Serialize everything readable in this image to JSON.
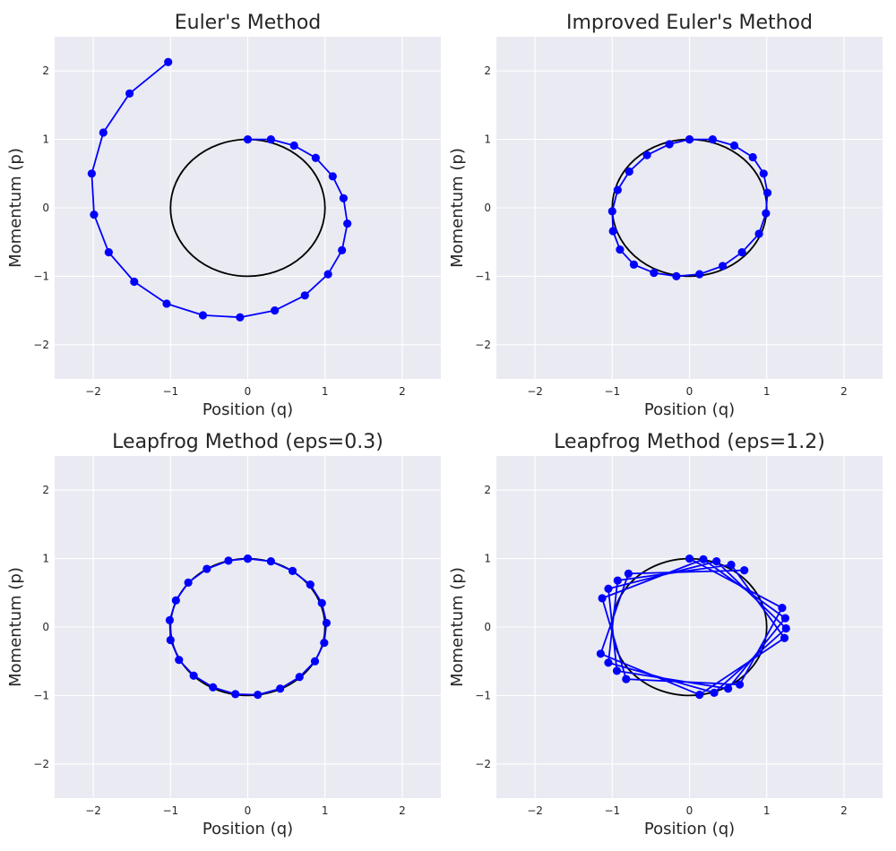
{
  "chart_data": [
    {
      "type": "scatter",
      "title": "Euler's Method",
      "xlabel": "Position (q)",
      "ylabel": "Momentum (p)",
      "xlim": [
        -2.5,
        2.5
      ],
      "ylim": [
        -2.5,
        2.5
      ],
      "xticks": [
        -2,
        -1,
        0,
        1,
        2
      ],
      "yticks": [
        -2,
        -1,
        0,
        1,
        2
      ],
      "xtick_labels": [
        "−2",
        "−1",
        "0",
        "1",
        "2"
      ],
      "ytick_labels": [
        "−2",
        "−1",
        "0",
        "1",
        "2"
      ],
      "grid": true,
      "reference_curve": {
        "shape": "circle",
        "center": [
          0,
          0
        ],
        "radius": 1,
        "color": "#000000"
      },
      "series": [
        {
          "color": "#0000ff",
          "marker": "circle",
          "line": true,
          "points": [
            [
              0.0,
              1.0
            ],
            [
              0.3,
              1.0
            ],
            [
              0.6,
              0.91
            ],
            [
              0.88,
              0.73
            ],
            [
              1.1,
              0.46
            ],
            [
              1.24,
              0.14
            ],
            [
              1.29,
              -0.23
            ],
            [
              1.22,
              -0.62
            ],
            [
              1.04,
              -0.97
            ],
            [
              0.74,
              -1.28
            ],
            [
              0.35,
              -1.5
            ],
            [
              -0.1,
              -1.6
            ],
            [
              -0.58,
              -1.57
            ],
            [
              -1.05,
              -1.4
            ],
            [
              -1.47,
              -1.08
            ],
            [
              -1.8,
              -0.65
            ],
            [
              -1.99,
              -0.1
            ],
            [
              -2.02,
              0.5
            ],
            [
              -1.87,
              1.1
            ],
            [
              -1.53,
              1.67
            ],
            [
              -1.03,
              2.13
            ]
          ]
        }
      ]
    },
    {
      "type": "scatter",
      "title": "Improved Euler's Method",
      "xlabel": "Position (q)",
      "ylabel": "Momentum (p)",
      "xlim": [
        -2.5,
        2.5
      ],
      "ylim": [
        -2.5,
        2.5
      ],
      "xticks": [
        -2,
        -1,
        0,
        1,
        2
      ],
      "yticks": [
        -2,
        -1,
        0,
        1,
        2
      ],
      "xtick_labels": [
        "−2",
        "−1",
        "0",
        "1",
        "2"
      ],
      "ytick_labels": [
        "−2",
        "−1",
        "0",
        "1",
        "2"
      ],
      "grid": true,
      "reference_curve": {
        "shape": "circle",
        "center": [
          0,
          0
        ],
        "radius": 1,
        "color": "#000000"
      },
      "series": [
        {
          "color": "#0000ff",
          "marker": "circle",
          "line": true,
          "points": [
            [
              0.0,
              1.0
            ],
            [
              0.3,
              1.0
            ],
            [
              0.58,
              0.91
            ],
            [
              0.82,
              0.74
            ],
            [
              0.96,
              0.5
            ],
            [
              1.01,
              0.22
            ],
            [
              0.99,
              -0.08
            ],
            [
              0.9,
              -0.38
            ],
            [
              0.68,
              -0.65
            ],
            [
              0.43,
              -0.85
            ],
            [
              0.13,
              -0.97
            ],
            [
              -0.17,
              -1.0
            ],
            [
              -0.46,
              -0.95
            ],
            [
              -0.72,
              -0.83
            ],
            [
              -0.9,
              -0.61
            ],
            [
              -0.99,
              -0.34
            ],
            [
              -1.0,
              -0.05
            ],
            [
              -0.93,
              0.26
            ],
            [
              -0.78,
              0.53
            ],
            [
              -0.55,
              0.77
            ],
            [
              -0.26,
              0.93
            ],
            [
              0.0,
              1.0
            ]
          ]
        }
      ]
    },
    {
      "type": "scatter",
      "title": "Leapfrog Method (eps=0.3)",
      "xlabel": "Position (q)",
      "ylabel": "Momentum (p)",
      "xlim": [
        -2.5,
        2.5
      ],
      "ylim": [
        -2.5,
        2.5
      ],
      "xticks": [
        -2,
        -1,
        0,
        1,
        2
      ],
      "yticks": [
        -2,
        -1,
        0,
        1,
        2
      ],
      "xtick_labels": [
        "−2",
        "−1",
        "0",
        "1",
        "2"
      ],
      "ytick_labels": [
        "−2",
        "−1",
        "0",
        "1",
        "2"
      ],
      "grid": true,
      "reference_curve": {
        "shape": "circle",
        "center": [
          0,
          0
        ],
        "radius": 1,
        "color": "#000000"
      },
      "series": [
        {
          "color": "#0000ff",
          "marker": "circle",
          "line": true,
          "points": [
            [
              0.0,
              1.0
            ],
            [
              0.3,
              0.96
            ],
            [
              0.58,
              0.82
            ],
            [
              0.81,
              0.62
            ],
            [
              0.96,
              0.35
            ],
            [
              1.02,
              0.06
            ],
            [
              0.99,
              -0.23
            ],
            [
              0.87,
              -0.5
            ],
            [
              0.67,
              -0.73
            ],
            [
              0.42,
              -0.9
            ],
            [
              0.13,
              -0.99
            ],
            [
              -0.16,
              -0.98
            ],
            [
              -0.45,
              -0.88
            ],
            [
              -0.7,
              -0.71
            ],
            [
              -0.89,
              -0.48
            ],
            [
              -1.0,
              -0.19
            ],
            [
              -1.01,
              0.1
            ],
            [
              -0.93,
              0.39
            ],
            [
              -0.77,
              0.65
            ],
            [
              -0.53,
              0.85
            ],
            [
              -0.25,
              0.97
            ],
            [
              0.0,
              1.0
            ]
          ]
        }
      ]
    },
    {
      "type": "scatter",
      "title": "Leapfrog Method (eps=1.2)",
      "xlabel": "Position (q)",
      "ylabel": "Momentum (p)",
      "xlim": [
        -2.5,
        2.5
      ],
      "ylim": [
        -2.5,
        2.5
      ],
      "xticks": [
        -2,
        -1,
        0,
        1,
        2
      ],
      "yticks": [
        -2,
        -1,
        0,
        1,
        2
      ],
      "xtick_labels": [
        "−2",
        "−1",
        "0",
        "1",
        "2"
      ],
      "ytick_labels": [
        "−2",
        "−1",
        "0",
        "1",
        "2"
      ],
      "grid": true,
      "reference_curve": {
        "shape": "circle",
        "center": [
          0,
          0
        ],
        "radius": 1,
        "color": "#000000"
      },
      "series": [
        {
          "color": "#0000ff",
          "marker": "circle",
          "line": true,
          "points": [
            [
              0.0,
              1.0
            ],
            [
              1.2,
              0.28
            ],
            [
              0.65,
              -0.84
            ],
            [
              -0.82,
              -0.76
            ],
            [
              -1.13,
              0.42
            ],
            [
              0.18,
              0.99
            ],
            [
              1.24,
              0.13
            ],
            [
              0.5,
              -0.9
            ],
            [
              -0.94,
              -0.64
            ],
            [
              -1.05,
              0.56
            ],
            [
              0.35,
              0.96
            ],
            [
              1.25,
              -0.02
            ],
            [
              0.32,
              -0.96
            ],
            [
              -1.05,
              -0.52
            ],
            [
              -0.93,
              0.68
            ],
            [
              0.54,
              0.91
            ],
            [
              1.23,
              -0.16
            ],
            [
              0.13,
              -0.99
            ],
            [
              -1.15,
              -0.39
            ],
            [
              -0.79,
              0.78
            ],
            [
              0.71,
              0.83
            ]
          ]
        }
      ]
    }
  ]
}
